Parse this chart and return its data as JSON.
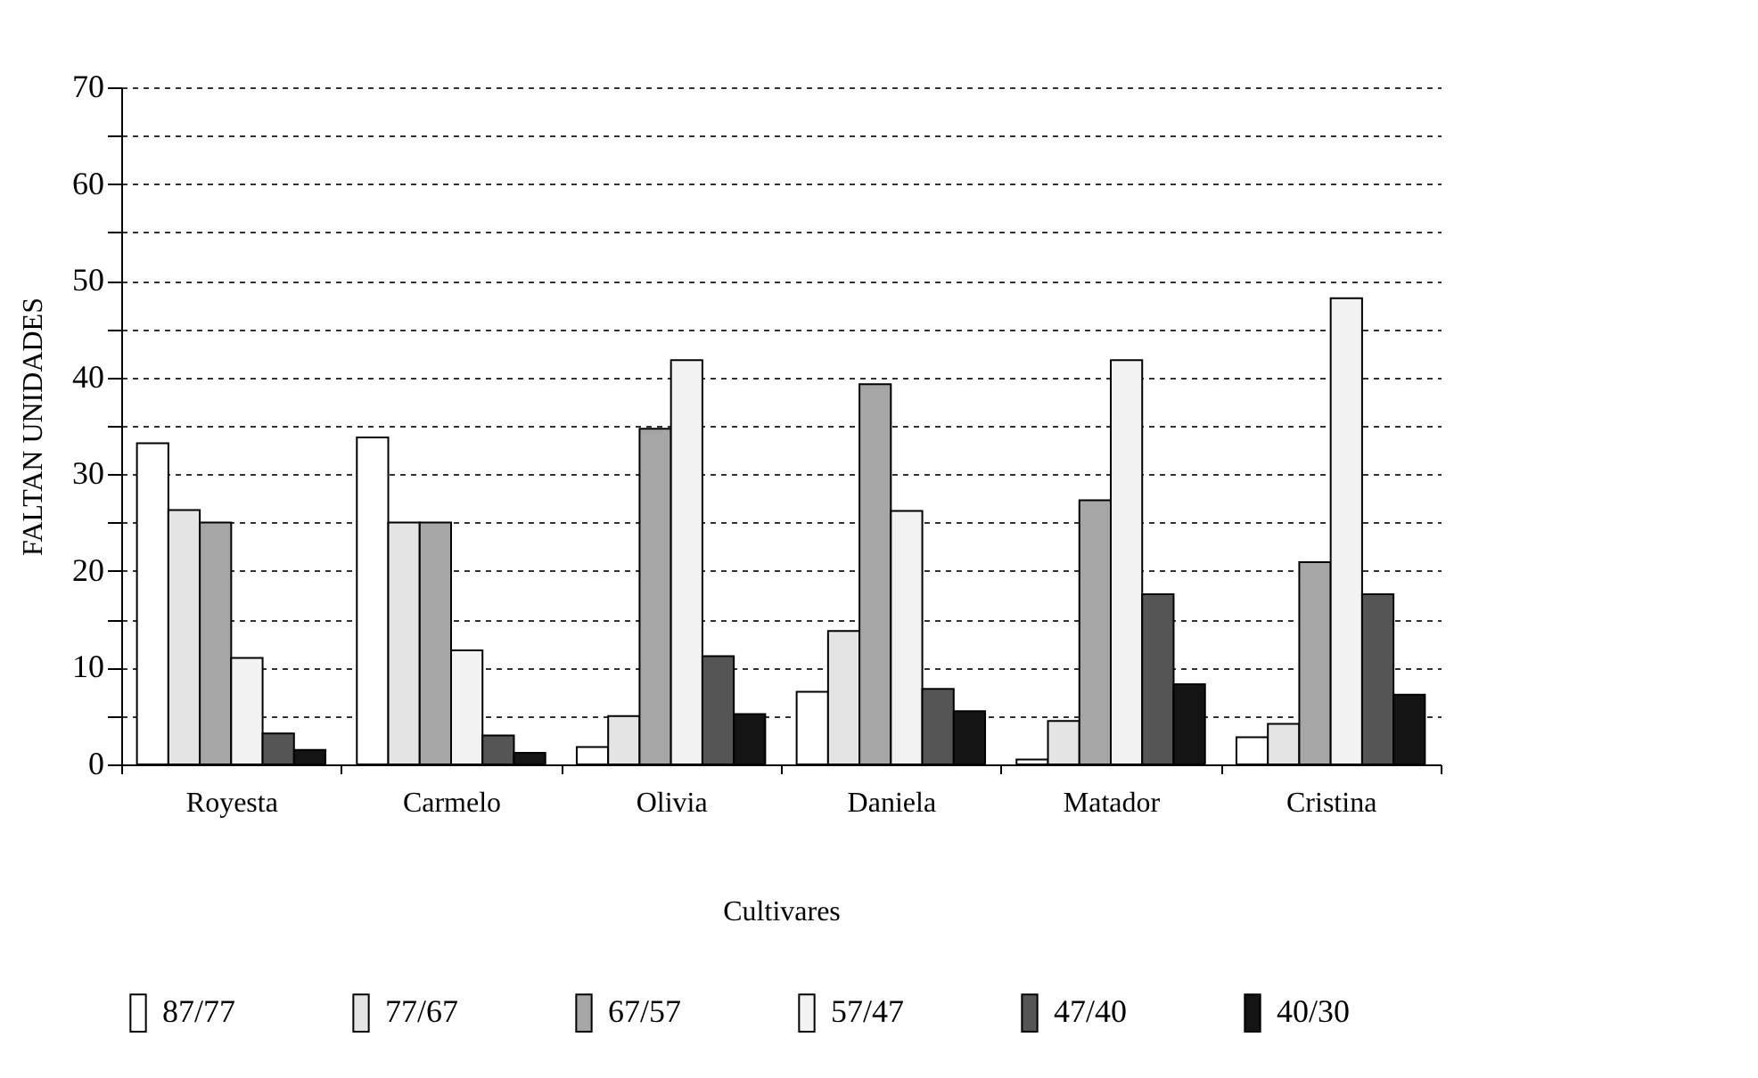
{
  "chart_data": {
    "type": "bar",
    "xlabel": "Cultivares",
    "ylabel": "FALTAN UNIDADES",
    "categories": [
      "Royesta",
      "Carmelo",
      "Olivia",
      "Daniela",
      "Matador",
      "Cristina"
    ],
    "series": [
      {
        "name": "87/77",
        "color": "#ffffff",
        "values": [
          33.2,
          33.8,
          1.8,
          7.5,
          0.5,
          2.8
        ]
      },
      {
        "name": "77/67",
        "color": "#e4e4e4",
        "values": [
          26.3,
          25,
          5,
          13.8,
          4.5,
          4.2
        ]
      },
      {
        "name": "67/57",
        "color": "#a6a6a6",
        "values": [
          25,
          25,
          34.7,
          39.3,
          27.3,
          20.9
        ]
      },
      {
        "name": "57/47",
        "color": "#f2f2f2",
        "values": [
          11,
          11.8,
          41.8,
          26.2,
          41.8,
          48.2
        ]
      },
      {
        "name": "47/40",
        "color": "#555555",
        "values": [
          3.2,
          3,
          11.2,
          7.8,
          17.6,
          17.6
        ]
      },
      {
        "name": "40/30",
        "color": "#141414",
        "values": [
          1.5,
          1.2,
          5.2,
          5.5,
          8.3,
          7.2
        ]
      }
    ],
    "ylim": [
      0,
      70
    ],
    "yticks": [
      0,
      {
        "value": 5,
        "label": null
      },
      10,
      {
        "value": 15,
        "label": null
      },
      20,
      {
        "value": 25,
        "label": null
      },
      30,
      {
        "value": 35,
        "label": null
      },
      40,
      {
        "value": 45,
        "label": null
      },
      50,
      {
        "value": 55,
        "label": null
      },
      60,
      {
        "value": 65,
        "label": null
      },
      70
    ],
    "grid": "y",
    "legend": "bottom"
  }
}
